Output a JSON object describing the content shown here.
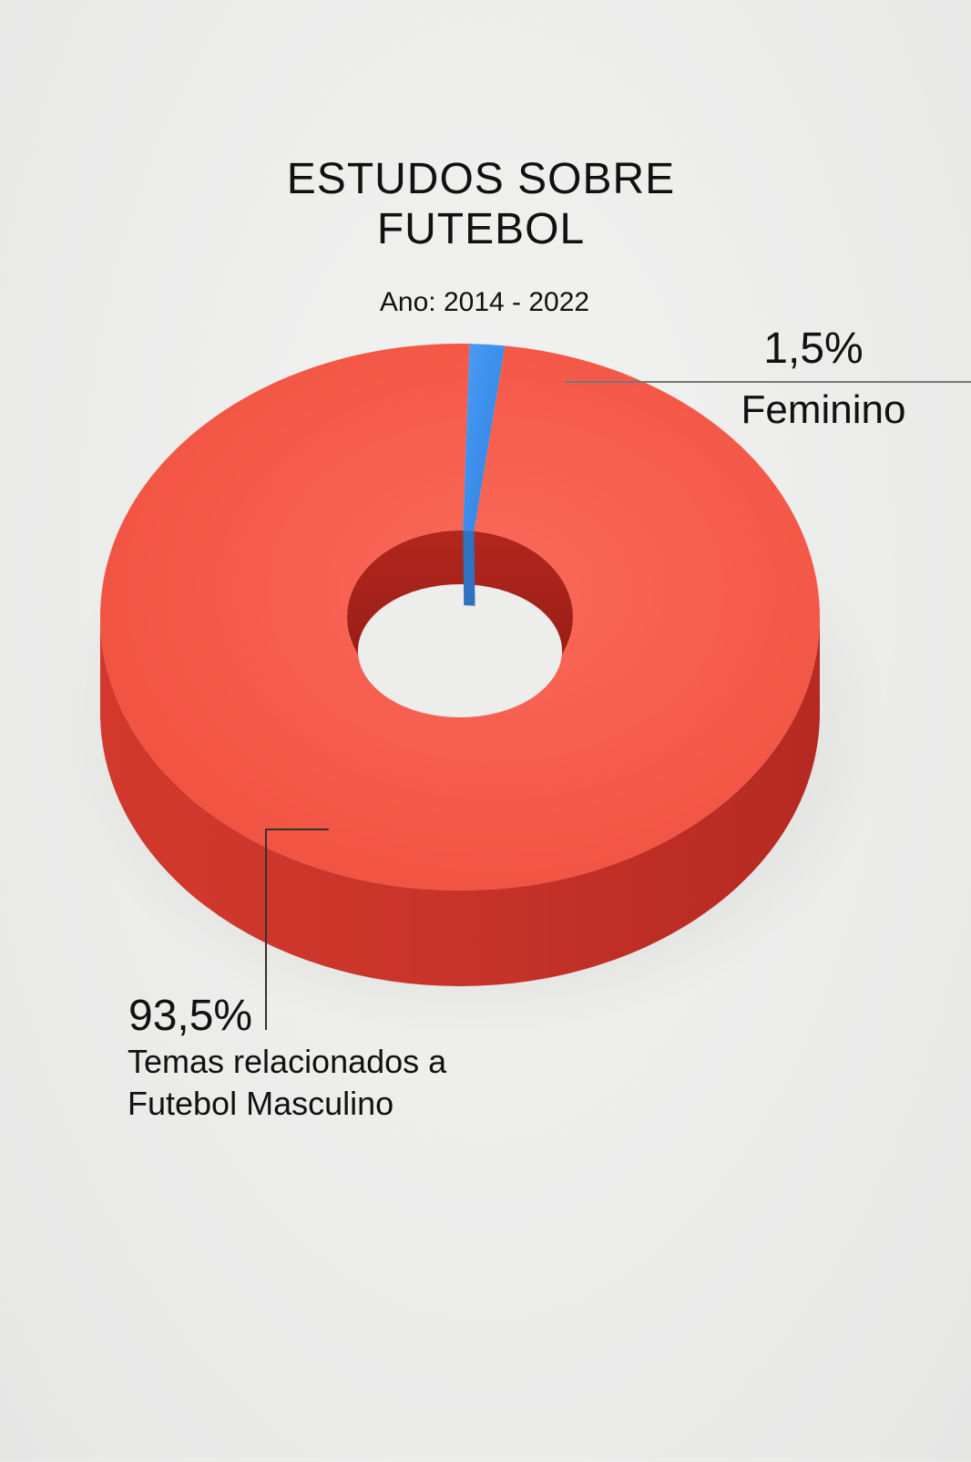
{
  "chart_data": {
    "type": "pie",
    "style": "3d-donut",
    "title_lines": [
      "ESTUDOS SOBRE",
      "FUTEBOL"
    ],
    "subtitle": "Ano: 2014 - 2022",
    "slices": [
      {
        "label_lines": [
          "Feminino"
        ],
        "value": 1.5,
        "value_label": "1,5%",
        "color": "#3b8ff0"
      },
      {
        "label_lines": [
          "Temas relacionados a",
          "Futebol Masculino"
        ],
        "value": 93.5,
        "value_label": "93,5%",
        "color": "#f55a4a"
      }
    ]
  }
}
